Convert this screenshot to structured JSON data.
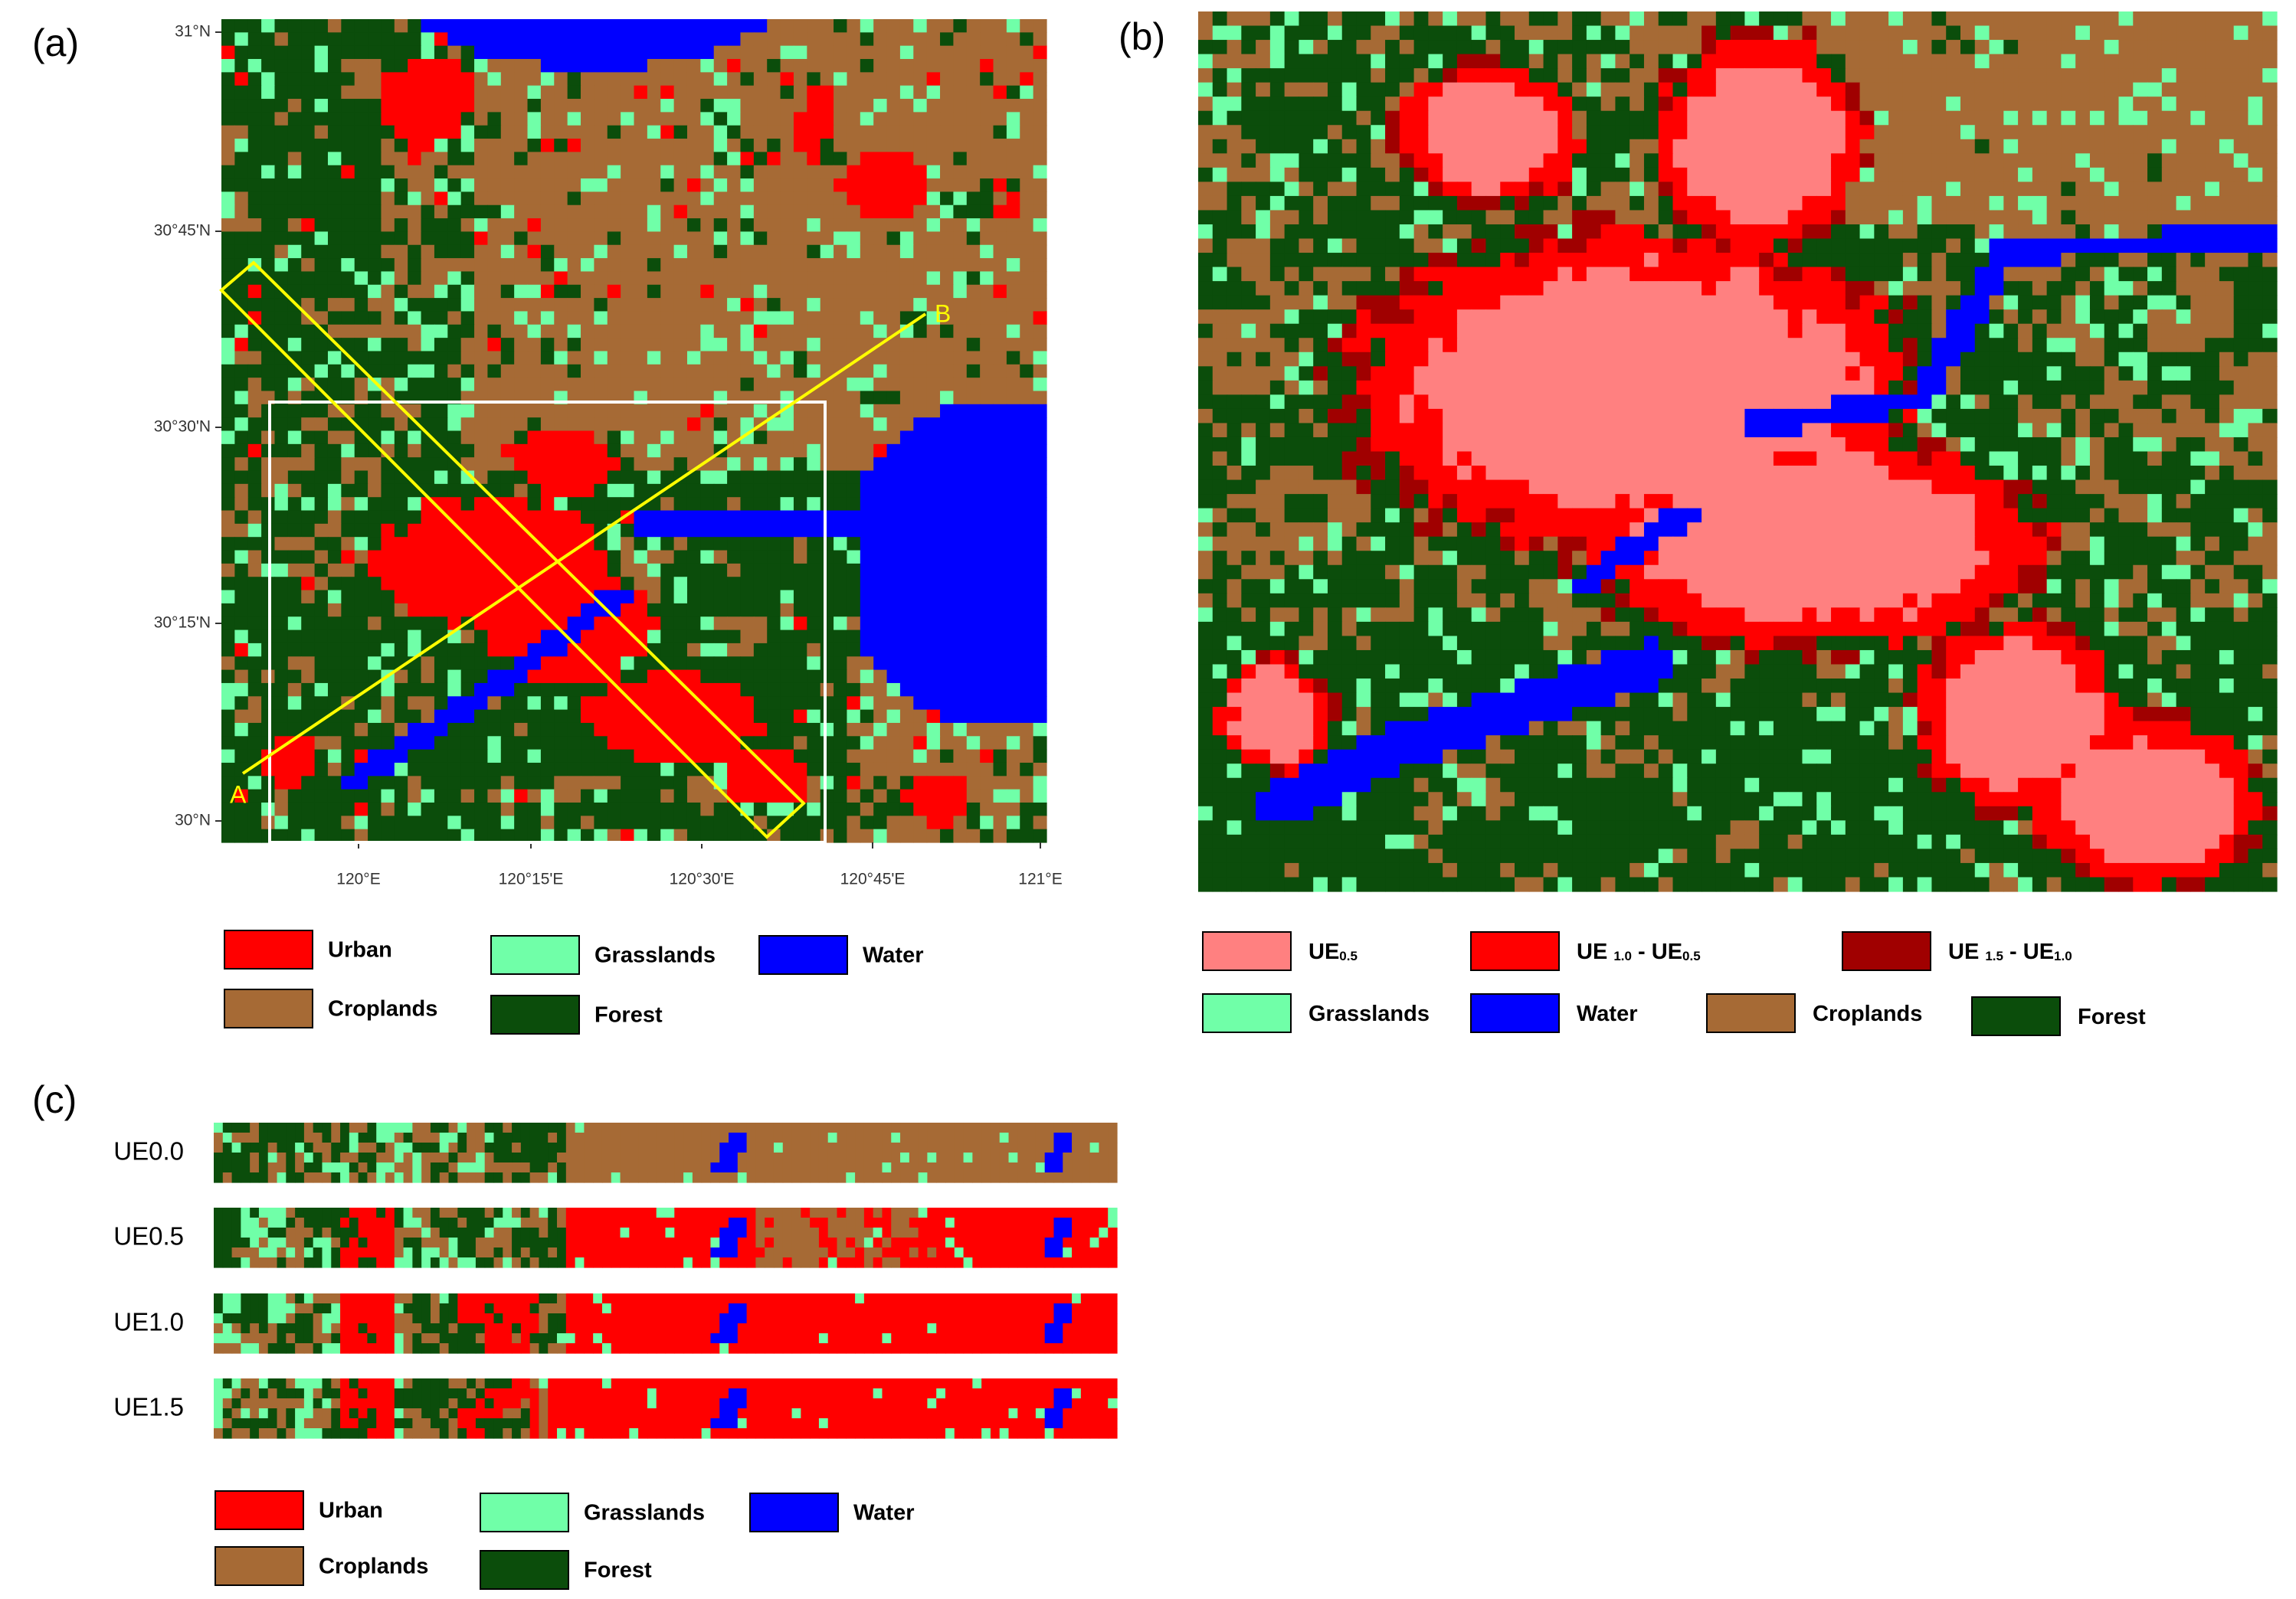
{
  "panel_a": {
    "label": "(a)",
    "lat_ticks": [
      "31°N",
      "30°45'N",
      "30°30'N",
      "30°15'N",
      "30°N"
    ],
    "lon_ticks": [
      "120°E",
      "120°15'E",
      "120°30'E",
      "120°45'E",
      "121°E"
    ],
    "transect_labels": [
      "A",
      "B"
    ],
    "legend": [
      {
        "name": "Urban",
        "color": "#ff0000"
      },
      {
        "name": "Grasslands",
        "color": "#70ffa8"
      },
      {
        "name": "Water",
        "color": "#0000ff"
      },
      {
        "name": "Croplands",
        "color": "#a66a35"
      },
      {
        "name": "Forest",
        "color": "#0b4d0b"
      }
    ]
  },
  "panel_b": {
    "label": "(b)",
    "legend": [
      {
        "parts": [
          "UE",
          "0.5"
        ],
        "color": "#ff8080"
      },
      {
        "parts": [
          "UE ",
          "1.0",
          " - UE",
          "0.5"
        ],
        "color": "#ff0000"
      },
      {
        "parts": [
          "UE ",
          "1.5",
          " - UE",
          "1.0"
        ],
        "color": "#a00000"
      },
      {
        "parts": [
          "Grasslands"
        ],
        "color": "#70ffa8"
      },
      {
        "parts": [
          "Water"
        ],
        "color": "#0000ff"
      },
      {
        "parts": [
          "Croplands"
        ],
        "color": "#a66a35"
      },
      {
        "parts": [
          "Forest"
        ],
        "color": "#0b4d0b"
      }
    ]
  },
  "panel_c": {
    "label": "(c)",
    "rows": [
      "UE0.0",
      "UE0.5",
      "UE1.0",
      "UE1.5"
    ],
    "legend": [
      {
        "name": "Urban",
        "color": "#ff0000"
      },
      {
        "name": "Grasslands",
        "color": "#70ffa8"
      },
      {
        "name": "Water",
        "color": "#0000ff"
      },
      {
        "name": "Croplands",
        "color": "#a66a35"
      },
      {
        "name": "Forest",
        "color": "#0b4d0b"
      }
    ]
  }
}
